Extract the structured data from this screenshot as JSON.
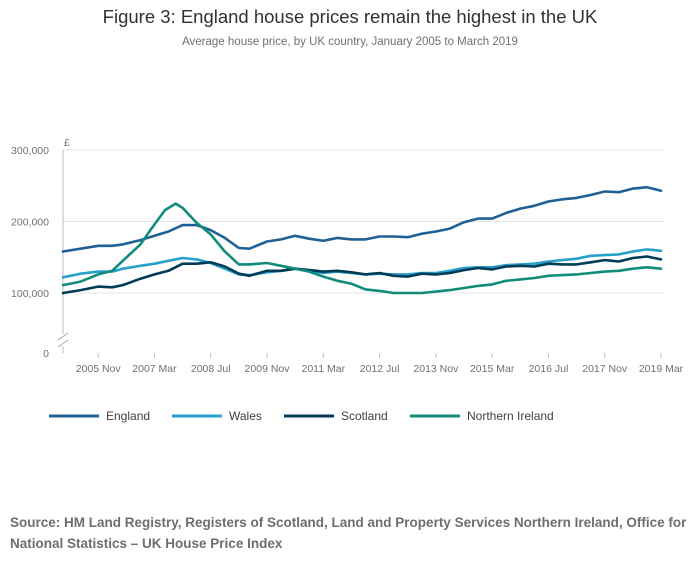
{
  "figure": {
    "title": "Figure 3: England house prices remain the highest in the UK",
    "subtitle": "Average house price, by UK country, January 2005 to March 2019",
    "source": "Source: HM Land Registry, Registers of Scotland, Land and Property Services Northern Ireland, Office for National Statistics – UK House Price Index"
  },
  "chart_data": {
    "type": "line",
    "title": "Figure 3: England house prices remain the highest in the UK",
    "subtitle": "Average house price, by UK country, January 2005 to March 2019",
    "unit_label": "£",
    "xlabel": "",
    "ylabel": "",
    "x_start": "2005-01",
    "x_end": "2019-03",
    "x_ticks": [
      {
        "date": "2005-11",
        "label": "2005 Nov"
      },
      {
        "date": "2007-03",
        "label": "2007 Mar"
      },
      {
        "date": "2008-07",
        "label": "2008 Jul"
      },
      {
        "date": "2009-11",
        "label": "2009 Nov"
      },
      {
        "date": "2011-03",
        "label": "2011 Mar"
      },
      {
        "date": "2012-07",
        "label": "2012 Jul"
      },
      {
        "date": "2013-11",
        "label": "2013 Nov"
      },
      {
        "date": "2015-03",
        "label": "2015 Mar"
      },
      {
        "date": "2016-07",
        "label": "2016 Jul"
      },
      {
        "date": "2017-11",
        "label": "2017 Nov"
      },
      {
        "date": "2019-03",
        "label": "2019 Mar"
      }
    ],
    "y_ticks": [
      {
        "value": 0,
        "label": "0"
      },
      {
        "value": 100000,
        "label": "100,000"
      },
      {
        "value": 200000,
        "label": "200,000"
      },
      {
        "value": 300000,
        "label": "300,000"
      }
    ],
    "ylim": [
      0,
      300000
    ],
    "y_axis_break": true,
    "grid": true,
    "legend_position": "bottom",
    "series": [
      {
        "name": "England",
        "color": "#206095",
        "points": [
          [
            "2005-01",
            158000
          ],
          [
            "2005-06",
            162000
          ],
          [
            "2005-11",
            166000
          ],
          [
            "2006-03",
            166000
          ],
          [
            "2006-06",
            168000
          ],
          [
            "2006-11",
            174000
          ],
          [
            "2007-03",
            180000
          ],
          [
            "2007-07",
            186000
          ],
          [
            "2007-11",
            195000
          ],
          [
            "2008-03",
            195000
          ],
          [
            "2008-07",
            188000
          ],
          [
            "2008-11",
            177000
          ],
          [
            "2009-03",
            163000
          ],
          [
            "2009-06",
            162000
          ],
          [
            "2009-11",
            172000
          ],
          [
            "2010-03",
            175000
          ],
          [
            "2010-07",
            180000
          ],
          [
            "2010-11",
            176000
          ],
          [
            "2011-03",
            173000
          ],
          [
            "2011-07",
            177000
          ],
          [
            "2011-11",
            175000
          ],
          [
            "2012-03",
            175000
          ],
          [
            "2012-07",
            179000
          ],
          [
            "2012-11",
            179000
          ],
          [
            "2013-03",
            178000
          ],
          [
            "2013-07",
            183000
          ],
          [
            "2013-11",
            186000
          ],
          [
            "2014-03",
            190000
          ],
          [
            "2014-07",
            199000
          ],
          [
            "2014-11",
            204000
          ],
          [
            "2015-03",
            204000
          ],
          [
            "2015-07",
            212000
          ],
          [
            "2015-11",
            218000
          ],
          [
            "2016-03",
            222000
          ],
          [
            "2016-07",
            228000
          ],
          [
            "2016-11",
            231000
          ],
          [
            "2017-03",
            233000
          ],
          [
            "2017-07",
            237000
          ],
          [
            "2017-11",
            242000
          ],
          [
            "2018-03",
            241000
          ],
          [
            "2018-07",
            246000
          ],
          [
            "2018-11",
            248000
          ],
          [
            "2019-03",
            243000
          ]
        ]
      },
      {
        "name": "Wales",
        "color": "#27a0cc",
        "points": [
          [
            "2005-01",
            122000
          ],
          [
            "2005-06",
            127000
          ],
          [
            "2005-11",
            130000
          ],
          [
            "2006-03",
            130000
          ],
          [
            "2006-06",
            134000
          ],
          [
            "2006-11",
            138000
          ],
          [
            "2007-03",
            141000
          ],
          [
            "2007-07",
            145000
          ],
          [
            "2007-11",
            149000
          ],
          [
            "2008-03",
            147000
          ],
          [
            "2008-07",
            142000
          ],
          [
            "2008-11",
            134000
          ],
          [
            "2009-03",
            126000
          ],
          [
            "2009-06",
            125000
          ],
          [
            "2009-11",
            129000
          ],
          [
            "2010-03",
            131000
          ],
          [
            "2010-07",
            134000
          ],
          [
            "2010-11",
            131000
          ],
          [
            "2011-03",
            128000
          ],
          [
            "2011-07",
            130000
          ],
          [
            "2011-11",
            128000
          ],
          [
            "2012-03",
            126000
          ],
          [
            "2012-07",
            127000
          ],
          [
            "2012-11",
            126000
          ],
          [
            "2013-03",
            126000
          ],
          [
            "2013-07",
            128000
          ],
          [
            "2013-11",
            128000
          ],
          [
            "2014-03",
            131000
          ],
          [
            "2014-07",
            135000
          ],
          [
            "2014-11",
            136000
          ],
          [
            "2015-03",
            136000
          ],
          [
            "2015-07",
            139000
          ],
          [
            "2015-11",
            140000
          ],
          [
            "2016-03",
            141000
          ],
          [
            "2016-07",
            144000
          ],
          [
            "2016-11",
            146000
          ],
          [
            "2017-03",
            148000
          ],
          [
            "2017-07",
            152000
          ],
          [
            "2017-11",
            153000
          ],
          [
            "2018-03",
            154000
          ],
          [
            "2018-07",
            158000
          ],
          [
            "2018-11",
            161000
          ],
          [
            "2019-03",
            159000
          ]
        ]
      },
      {
        "name": "Scotland",
        "color": "#003c57",
        "points": [
          [
            "2005-01",
            93000
          ],
          [
            "2005-06",
            104000
          ],
          [
            "2005-11",
            109000
          ],
          [
            "2006-03",
            108000
          ],
          [
            "2006-06",
            111000
          ],
          [
            "2006-11",
            120000
          ],
          [
            "2007-03",
            126000
          ],
          [
            "2007-07",
            131000
          ],
          [
            "2007-11",
            141000
          ],
          [
            "2008-03",
            141000
          ],
          [
            "2008-07",
            143000
          ],
          [
            "2008-11",
            137000
          ],
          [
            "2009-03",
            127000
          ],
          [
            "2009-06",
            124000
          ],
          [
            "2009-11",
            131000
          ],
          [
            "2010-03",
            131000
          ],
          [
            "2010-07",
            134000
          ],
          [
            "2010-11",
            132000
          ],
          [
            "2011-03",
            130000
          ],
          [
            "2011-07",
            131000
          ],
          [
            "2011-11",
            129000
          ],
          [
            "2012-03",
            126000
          ],
          [
            "2012-07",
            128000
          ],
          [
            "2012-11",
            124000
          ],
          [
            "2013-03",
            123000
          ],
          [
            "2013-07",
            127000
          ],
          [
            "2013-11",
            126000
          ],
          [
            "2014-03",
            128000
          ],
          [
            "2014-07",
            132000
          ],
          [
            "2014-11",
            135000
          ],
          [
            "2015-03",
            133000
          ],
          [
            "2015-07",
            137000
          ],
          [
            "2015-11",
            138000
          ],
          [
            "2016-03",
            137000
          ],
          [
            "2016-07",
            141000
          ],
          [
            "2016-11",
            140000
          ],
          [
            "2017-03",
            140000
          ],
          [
            "2017-07",
            143000
          ],
          [
            "2017-11",
            146000
          ],
          [
            "2018-03",
            144000
          ],
          [
            "2018-07",
            149000
          ],
          [
            "2018-11",
            151000
          ],
          [
            "2019-03",
            147000
          ]
        ]
      },
      {
        "name": "Northern Ireland",
        "color": "#118c7b",
        "points": [
          [
            "2005-01",
            111000
          ],
          [
            "2005-06",
            116000
          ],
          [
            "2005-11",
            126000
          ],
          [
            "2006-03",
            131000
          ],
          [
            "2006-06",
            145000
          ],
          [
            "2006-11",
            168000
          ],
          [
            "2007-03",
            196000
          ],
          [
            "2007-06",
            216000
          ],
          [
            "2007-09",
            225000
          ],
          [
            "2007-11",
            219000
          ],
          [
            "2008-03",
            198000
          ],
          [
            "2008-07",
            182000
          ],
          [
            "2008-11",
            158000
          ],
          [
            "2009-03",
            140000
          ],
          [
            "2009-06",
            140000
          ],
          [
            "2009-11",
            142000
          ],
          [
            "2010-03",
            138000
          ],
          [
            "2010-07",
            134000
          ],
          [
            "2010-11",
            130000
          ],
          [
            "2011-03",
            123000
          ],
          [
            "2011-07",
            117000
          ],
          [
            "2011-11",
            113000
          ],
          [
            "2012-03",
            105000
          ],
          [
            "2012-07",
            103000
          ],
          [
            "2012-11",
            100000
          ],
          [
            "2013-03",
            97000
          ],
          [
            "2013-07",
            99000
          ],
          [
            "2013-11",
            102000
          ],
          [
            "2014-03",
            104000
          ],
          [
            "2014-07",
            107000
          ],
          [
            "2014-11",
            110000
          ],
          [
            "2015-03",
            112000
          ],
          [
            "2015-07",
            117000
          ],
          [
            "2015-11",
            119000
          ],
          [
            "2016-03",
            121000
          ],
          [
            "2016-07",
            124000
          ],
          [
            "2016-11",
            125000
          ],
          [
            "2017-03",
            126000
          ],
          [
            "2017-07",
            128000
          ],
          [
            "2017-11",
            130000
          ],
          [
            "2018-03",
            131000
          ],
          [
            "2018-07",
            134000
          ],
          [
            "2018-11",
            136000
          ],
          [
            "2019-03",
            134000
          ]
        ]
      }
    ]
  }
}
